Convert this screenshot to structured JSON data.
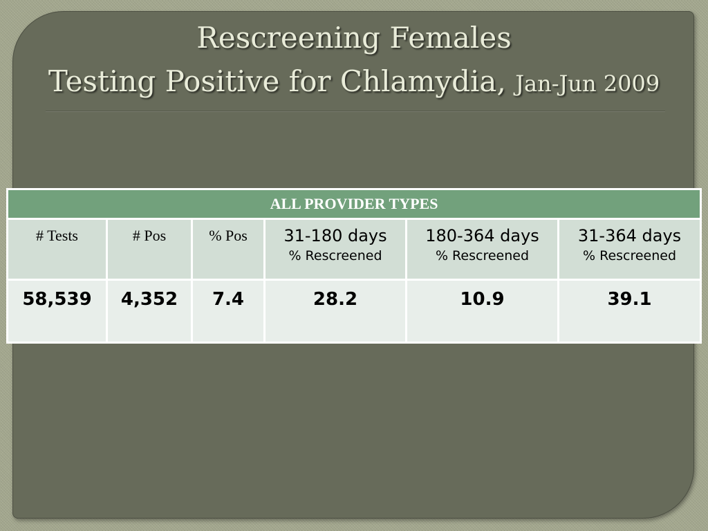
{
  "title": {
    "line1": "Rescreening Females",
    "line2": "Testing Positive for Chlamydia,",
    "line2_small": "Jan-Jun 2009"
  },
  "table": {
    "banner": "ALL PROVIDER TYPES",
    "headers": {
      "tests": "# Tests",
      "pos": "# Pos",
      "pct_pos": "% Pos",
      "range1_days": "31-180 days",
      "range1_sub": "%  Rescreened",
      "range2_days": "180-364 days",
      "range2_sub": "%  Rescreened",
      "range3_days": "31-364 days",
      "range3_sub": "%  Rescreened"
    },
    "values": {
      "tests": "58,539",
      "pos": "4,352",
      "pct_pos": "7.4",
      "range1": "28.2",
      "range2": "10.9",
      "range3": "39.1"
    }
  },
  "colors": {
    "slide_background": "#676b5a",
    "banner": "#72a17c",
    "header_row": "#d2ded5",
    "value_row": "#e8eeea",
    "title_text": "#e9ecd9"
  }
}
